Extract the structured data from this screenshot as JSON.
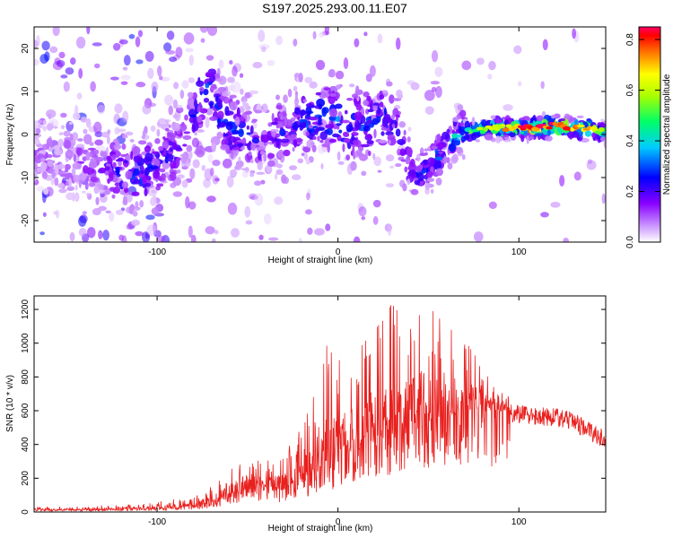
{
  "figure": {
    "title": "S197.2025.293.00.11.E07"
  },
  "chart_data": [
    {
      "type": "heatmap",
      "panel": "spectrogram",
      "xlabel": "Height of straight line (km)",
      "ylabel": "Frequency (Hz)",
      "xlim": [
        -168,
        148
      ],
      "ylim": [
        -25,
        25
      ],
      "xticks": [
        -100,
        0,
        100
      ],
      "xtick_labels": [
        "-100",
        "0",
        "100"
      ],
      "yticks": [
        -20,
        -10,
        0,
        10,
        20
      ],
      "ytick_labels": [
        "-20",
        "-10",
        "0",
        "10",
        "20"
      ],
      "colorbar": {
        "label": "Normalized spectral amplitude",
        "range": [
          0,
          0.85
        ],
        "ticks": [
          0.0,
          0.2,
          0.4,
          0.6,
          0.8
        ],
        "tick_labels": [
          "0.0",
          "0.2",
          "0.4",
          "0.6",
          "0.8"
        ],
        "colormap": [
          "#ffffff",
          "#a000ff",
          "#0000ff",
          "#00ffff",
          "#00ff00",
          "#ffff00",
          "#ff8000",
          "#ff0000",
          "#ff0080"
        ]
      },
      "ridge": {
        "height_km": [
          -168,
          -150,
          -135,
          -125,
          -118,
          -110,
          -100,
          -90,
          -82,
          -77,
          -72,
          -68,
          -60,
          -50,
          -42,
          -35,
          -25,
          -15,
          -5,
          5,
          15,
          25,
          32,
          38,
          42,
          50,
          58,
          65,
          72,
          80,
          90,
          100,
          110,
          120,
          130,
          140,
          148
        ],
        "frequency_hz": [
          -5,
          -6,
          -7,
          -8,
          -9,
          -10,
          -7,
          -4,
          1,
          8,
          14,
          6,
          1,
          0,
          -3,
          0,
          2,
          4,
          4,
          2,
          2,
          4,
          2,
          -4,
          -10,
          -8,
          -3,
          0,
          1,
          1,
          1.5,
          1.5,
          1.5,
          2,
          1.5,
          1.5,
          0.5
        ],
        "peak_amplitude": [
          0.12,
          0.14,
          0.18,
          0.22,
          0.28,
          0.3,
          0.26,
          0.24,
          0.22,
          0.3,
          0.36,
          0.3,
          0.32,
          0.26,
          0.22,
          0.24,
          0.28,
          0.34,
          0.36,
          0.32,
          0.3,
          0.3,
          0.22,
          0.24,
          0.28,
          0.32,
          0.38,
          0.44,
          0.5,
          0.6,
          0.72,
          0.8,
          0.85,
          0.82,
          0.78,
          0.7,
          0.55
        ]
      }
    },
    {
      "type": "line",
      "panel": "snr",
      "xlabel": "Height of straight line (km)",
      "ylabel": "SNR (10 * v/v)",
      "xlim": [
        -168,
        148
      ],
      "ylim": [
        0,
        1280
      ],
      "xticks": [
        -100,
        0,
        100
      ],
      "xtick_labels": [
        "-100",
        "0",
        "100"
      ],
      "yticks": [
        0,
        200,
        400,
        600,
        800,
        1000,
        1200
      ],
      "ytick_labels": [
        "0",
        "200",
        "400",
        "600",
        "800",
        "1000",
        "1200"
      ],
      "color": "#e8201e",
      "series": [
        {
          "name": "SNR",
          "envelope_height_km": [
            -168,
            -140,
            -120,
            -100,
            -80,
            -70,
            -60,
            -50,
            -40,
            -30,
            -20,
            -10,
            0,
            10,
            20,
            30,
            40,
            50,
            60,
            70,
            80,
            90,
            100,
            110,
            120,
            130,
            140,
            148
          ],
          "baseline": [
            12,
            12,
            14,
            20,
            30,
            50,
            90,
            150,
            130,
            120,
            180,
            240,
            300,
            360,
            420,
            470,
            520,
            540,
            560,
            590,
            600,
            590,
            580,
            570,
            560,
            540,
            470,
            430
          ],
          "peak": [
            30,
            35,
            45,
            65,
            90,
            150,
            250,
            330,
            300,
            350,
            520,
            1100,
            900,
            1020,
            1100,
            1270,
            1270,
            1210,
            1180,
            1050,
            850,
            720,
            680,
            640,
            620,
            600,
            560,
            520
          ]
        }
      ]
    }
  ]
}
